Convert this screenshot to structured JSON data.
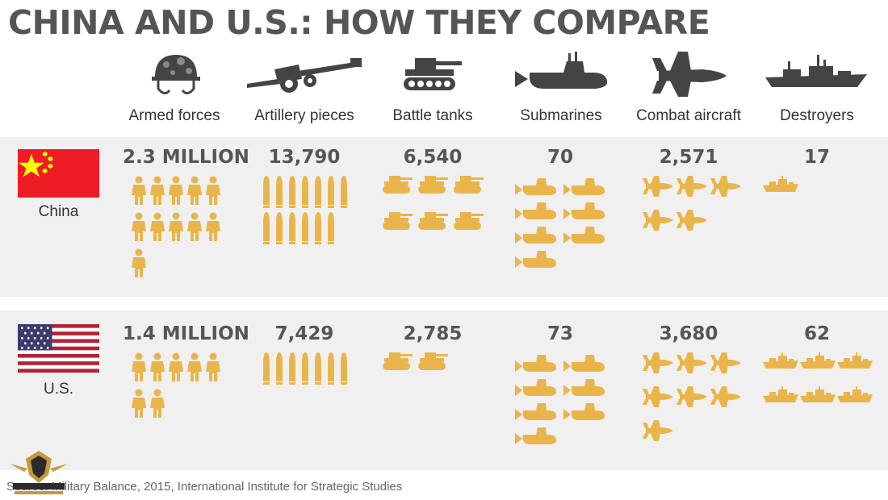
{
  "title": "CHINA AND U.S.: HOW THEY COMPARE",
  "source": "Source: Military Balance, 2015, International Institute for Strategic Studies",
  "colors": {
    "icon": "#e9b54b",
    "header_icon": "#444444",
    "band": "#f0f0f0",
    "text": "#555555"
  },
  "chart_data": {
    "type": "table",
    "categories": [
      "Armed forces",
      "Artillery pieces",
      "Battle tanks",
      "Submarines",
      "Combat aircraft",
      "Destroyers"
    ],
    "category_icons": [
      "helmet-icon",
      "artillery-icon",
      "tank-icon",
      "submarine-icon",
      "aircraft-icon",
      "destroyer-icon"
    ],
    "series": [
      {
        "name": "China",
        "labels": [
          "2.3 MILLION",
          "13,790",
          "6,540",
          "70",
          "2,571",
          "17"
        ],
        "values": [
          2300000,
          13790,
          6540,
          70,
          2571,
          17
        ],
        "pictogram_units": [
          11.5,
          13.8,
          6.5,
          7,
          5.1,
          1.7
        ]
      },
      {
        "name": "U.S.",
        "labels": [
          "1.4 MILLION",
          "7,429",
          "2,785",
          "73",
          "3,680",
          "62"
        ],
        "values": [
          1400000,
          7429,
          2785,
          73,
          3680,
          62
        ],
        "pictogram_units": [
          7,
          7.4,
          2.8,
          7.3,
          7.4,
          6.2
        ]
      }
    ]
  }
}
